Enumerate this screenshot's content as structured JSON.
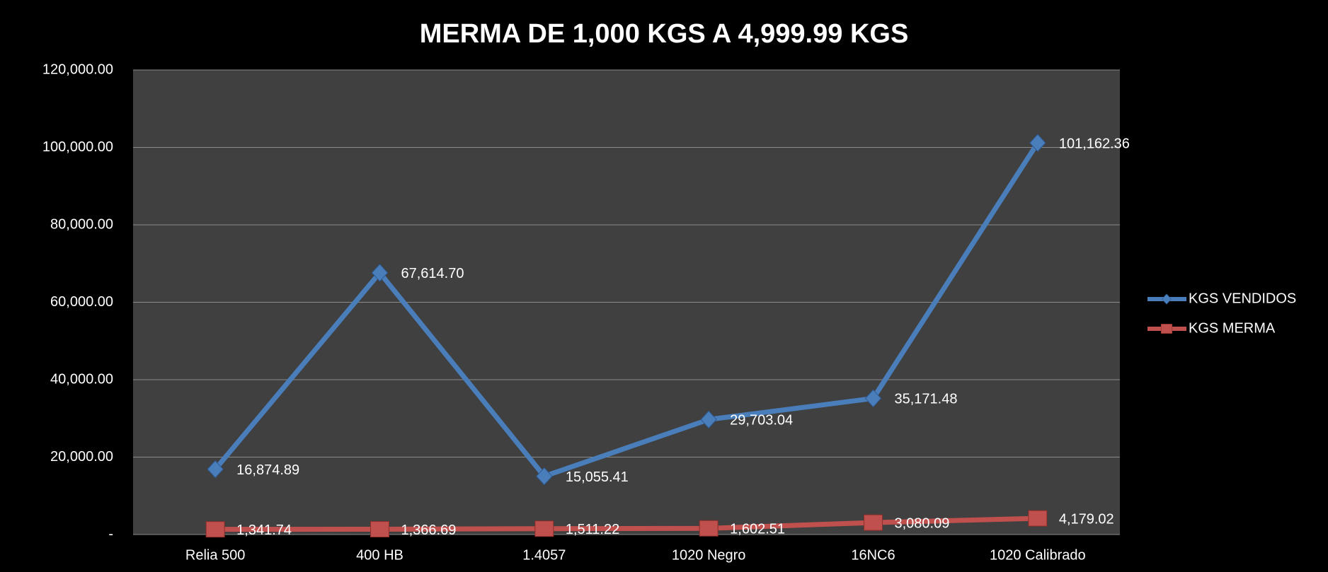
{
  "chart_data": {
    "type": "line",
    "title": "MERMA DE 1,000 KGS A 4,999.99 KGS",
    "categories": [
      "Relia 500",
      "400 HB",
      "1.4057",
      "1020 Negro",
      "16NC6",
      "1020 Calibrado"
    ],
    "series": [
      {
        "name": "KGS VENDIDOS",
        "color": "#4a7ebb",
        "marker": "diamond",
        "values": [
          16874.89,
          67614.7,
          15055.41,
          29703.04,
          35171.48,
          101162.36
        ],
        "value_labels": [
          "16,874.89",
          "67,614.70",
          "15,055.41",
          "29,703.04",
          "35,171.48",
          "101,162.36"
        ]
      },
      {
        "name": "KGS MERMA",
        "color": "#c0504d",
        "marker": "square",
        "values": [
          1341.74,
          1366.69,
          1511.22,
          1602.51,
          3080.09,
          4179.02
        ],
        "value_labels": [
          "1,341.74",
          "1,366.69",
          "1,511.22",
          "1,602.51",
          "3,080.09",
          "4,179.02"
        ]
      }
    ],
    "ylim": [
      0,
      120000
    ],
    "yticks": [
      {
        "value": 0,
        "label": "-"
      },
      {
        "value": 20000,
        "label": "20,000.00"
      },
      {
        "value": 40000,
        "label": "40,000.00"
      },
      {
        "value": 60000,
        "label": "60,000.00"
      },
      {
        "value": 80000,
        "label": "80,000.00"
      },
      {
        "value": 100000,
        "label": "100,000.00"
      },
      {
        "value": 120000,
        "label": "120,000.00"
      }
    ],
    "grid": true,
    "legend": "right"
  }
}
